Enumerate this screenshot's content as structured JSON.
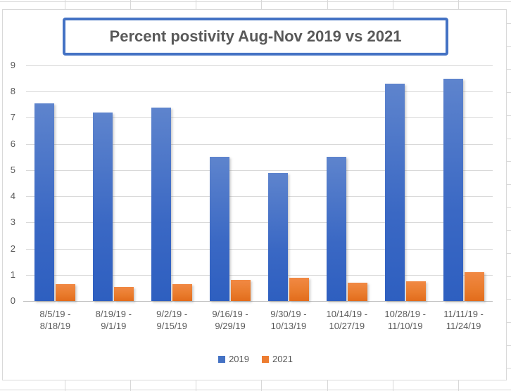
{
  "sheet": {
    "app": "spreadsheet",
    "gridline_color": "#d8d8d8"
  },
  "chart_data": {
    "type": "bar",
    "title": "Percent postivity Aug-Nov 2019 vs 2021",
    "categories": [
      "8/5/19 - 8/18/19",
      "8/19/19 - 9/1/19",
      "9/2/19 - 9/15/19",
      "9/16/19 - 9/29/19",
      "9/30/19 - 10/13/19",
      "10/14/19 - 10/27/19",
      "10/28/19 - 11/10/19",
      "11/11/19 - 11/24/19"
    ],
    "category_lines": [
      [
        "8/5/19 -",
        "8/18/19"
      ],
      [
        "8/19/19 -",
        "9/1/19"
      ],
      [
        "9/2/19 -",
        "9/15/19"
      ],
      [
        "9/16/19 -",
        "9/29/19"
      ],
      [
        "9/30/19 -",
        "10/13/19"
      ],
      [
        "10/14/19 -",
        "10/27/19"
      ],
      [
        "10/28/19 -",
        "11/10/19"
      ],
      [
        "11/11/19 -",
        "11/24/19"
      ]
    ],
    "series": [
      {
        "name": "2019",
        "color": "#4472C4",
        "values": [
          7.55,
          7.2,
          7.4,
          5.5,
          4.9,
          5.5,
          8.3,
          8.5
        ]
      },
      {
        "name": "2021",
        "color": "#ED7D31",
        "values": [
          0.65,
          0.55,
          0.65,
          0.8,
          0.9,
          0.7,
          0.75,
          1.1
        ]
      }
    ],
    "ylim": [
      0,
      9
    ],
    "yticks": [
      "0",
      "1",
      "2",
      "3",
      "4",
      "5",
      "6",
      "7",
      "8",
      "9"
    ],
    "xlabel": "",
    "ylabel": "",
    "grid": true,
    "legend_position": "bottom"
  },
  "legend": {
    "items": [
      {
        "label": "2019",
        "color": "#4472C4"
      },
      {
        "label": "2021",
        "color": "#ED7D31"
      }
    ]
  },
  "colors": {
    "title_border": "#4472C4",
    "text": "#595959",
    "gridline": "#d9d9d9",
    "bar_2019_top": "#5E84CD",
    "bar_2019_bottom": "#2E5FC0",
    "bar_2021_top": "#F18944",
    "bar_2021_bottom": "#E26C1C"
  }
}
